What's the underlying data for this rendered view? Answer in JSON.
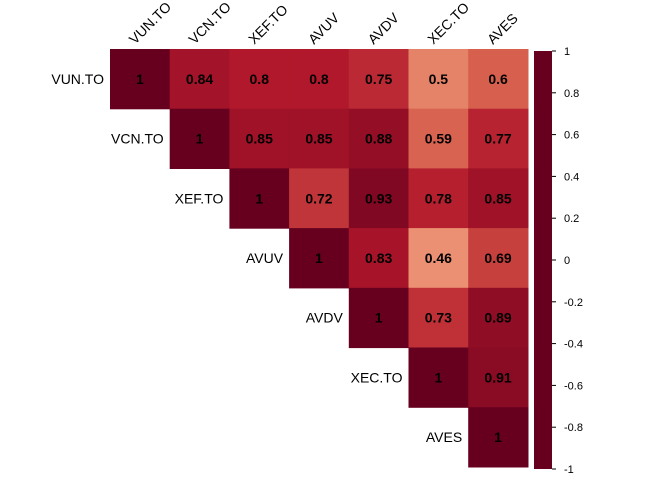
{
  "chart_data": {
    "type": "heatmap",
    "title": "",
    "xlabel": "",
    "ylabel": "",
    "variables": [
      "VUN.TO",
      "VCN.TO",
      "XEF.TO",
      "AVUV",
      "AVDV",
      "XEC.TO",
      "AVES"
    ],
    "matrix": [
      [
        1,
        0.84,
        0.8,
        0.8,
        0.75,
        0.5,
        0.6
      ],
      [
        null,
        1,
        0.85,
        0.85,
        0.88,
        0.59,
        0.77
      ],
      [
        null,
        null,
        1,
        0.72,
        0.93,
        0.78,
        0.85
      ],
      [
        null,
        null,
        null,
        1,
        0.83,
        0.46,
        0.69
      ],
      [
        null,
        null,
        null,
        null,
        1,
        0.73,
        0.89
      ],
      [
        null,
        null,
        null,
        null,
        null,
        1,
        0.91
      ],
      [
        null,
        null,
        null,
        null,
        null,
        null,
        1
      ]
    ],
    "matrix_shape": "upper",
    "colorbar": {
      "range": [
        -1,
        1
      ],
      "ticks": [
        "1",
        "0.8",
        "0.6",
        "0.4",
        "0.2",
        "0",
        "-0.2",
        "-0.4",
        "-0.6",
        "-0.8",
        "-1"
      ],
      "tick_values": [
        1,
        0.8,
        0.6,
        0.4,
        0.2,
        0,
        -0.2,
        -0.4,
        -0.6,
        -0.8,
        -1
      ],
      "colors": [
        "#67001F",
        "#B2182B",
        "#D6604D",
        "#F4A582",
        "#FDDBC7",
        "#FFFFFF",
        "#D1E5F0",
        "#92C5DE",
        "#4393C3",
        "#2166AC",
        "#053061"
      ]
    }
  }
}
